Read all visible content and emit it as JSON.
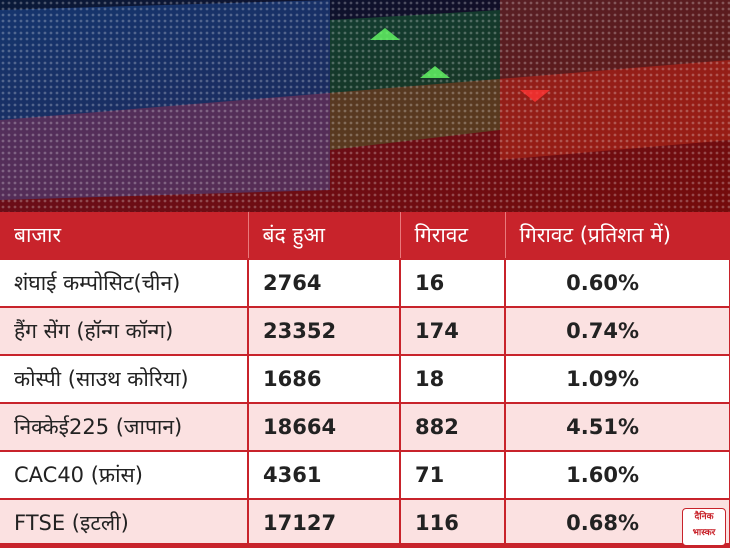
{
  "table": {
    "header": [
      "बाजार",
      "बंद हुआ",
      "गिरावट",
      "गिरावट (प्रतिशत में)"
    ],
    "rows": [
      [
        "शंघाई कम्पोसिट(चीन)",
        "2764",
        "16",
        "0.60%"
      ],
      [
        "हैंग सेंग (हॉन्ग कॉन्ग)",
        "23352",
        "174",
        "0.74%"
      ],
      [
        "कोस्पी (साउथ कोरिया)",
        "1686",
        "18",
        "1.09%"
      ],
      [
        "निक्केई225 (जापान)",
        "18664",
        "882",
        "4.51%"
      ],
      [
        "CAC40 (फ्रांस)",
        "4361",
        "71",
        "1.60%"
      ],
      [
        "FTSE (इटली)",
        "17127",
        "116",
        "0.68%"
      ]
    ]
  },
  "logo": {
    "line1": "दैनिक",
    "line2": "भास्कर"
  }
}
